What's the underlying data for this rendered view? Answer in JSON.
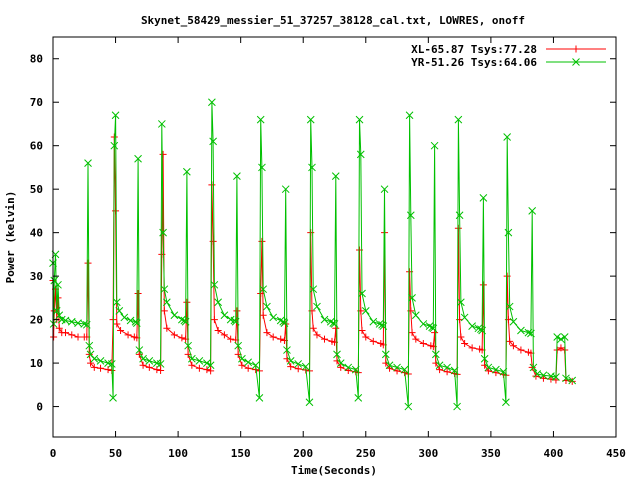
{
  "chart_data": {
    "type": "line",
    "title": "Skynet_58429_messier_51_37257_38128_cal.txt, LOWRES, onoff",
    "xlabel": "Time(Seconds)",
    "ylabel": "Power (kelvin)",
    "xlim": [
      0,
      450
    ],
    "ylim": [
      -7,
      85
    ],
    "xticks": [
      0,
      50,
      100,
      150,
      200,
      250,
      300,
      350,
      400,
      450
    ],
    "yticks": [
      0,
      10,
      20,
      30,
      40,
      50,
      60,
      70,
      80
    ],
    "legend_position": "top-right",
    "grid": false,
    "series": [
      {
        "name": "XL-65.87 Tsys:77.28",
        "color": "#ff0000",
        "marker": "plus",
        "points": [
          [
            0,
            29
          ],
          [
            0.5,
            16
          ],
          [
            1,
            22
          ],
          [
            2,
            27
          ],
          [
            3,
            20
          ],
          [
            4,
            25
          ],
          [
            5,
            18
          ],
          [
            7,
            17
          ],
          [
            10,
            17
          ],
          [
            15,
            16.5
          ],
          [
            20,
            16
          ],
          [
            25,
            16
          ],
          [
            27,
            16
          ],
          [
            28,
            33
          ],
          [
            29,
            12
          ],
          [
            30,
            10
          ],
          [
            33,
            9
          ],
          [
            38,
            8.8
          ],
          [
            44,
            8.5
          ],
          [
            47,
            8.3
          ],
          [
            48,
            20
          ],
          [
            49,
            62
          ],
          [
            50,
            45
          ],
          [
            51,
            19
          ],
          [
            54,
            17.5
          ],
          [
            60,
            16.5
          ],
          [
            65,
            16
          ],
          [
            67,
            15.8
          ],
          [
            68,
            26
          ],
          [
            69,
            12
          ],
          [
            72,
            9.5
          ],
          [
            77,
            9
          ],
          [
            83,
            8.5
          ],
          [
            86,
            8.3
          ],
          [
            87,
            35
          ],
          [
            88,
            58
          ],
          [
            89,
            22
          ],
          [
            91,
            18
          ],
          [
            97,
            16.5
          ],
          [
            103,
            15.8
          ],
          [
            106,
            15.5
          ],
          [
            107,
            24
          ],
          [
            108,
            12
          ],
          [
            111,
            9.5
          ],
          [
            117,
            8.8
          ],
          [
            123,
            8.5
          ],
          [
            126,
            8.2
          ],
          [
            127,
            51
          ],
          [
            128,
            38
          ],
          [
            129,
            20
          ],
          [
            132,
            17.5
          ],
          [
            137,
            16.5
          ],
          [
            142,
            15.5
          ],
          [
            146,
            15.3
          ],
          [
            147,
            22
          ],
          [
            148,
            12
          ],
          [
            151,
            9.5
          ],
          [
            156,
            8.8
          ],
          [
            162,
            8.5
          ],
          [
            165,
            8.2
          ],
          [
            166,
            26
          ],
          [
            167,
            38
          ],
          [
            168,
            21
          ],
          [
            171,
            17
          ],
          [
            176,
            16
          ],
          [
            182,
            15.5
          ],
          [
            185,
            15.2
          ],
          [
            186,
            19
          ],
          [
            187,
            11
          ],
          [
            190,
            9.2
          ],
          [
            196,
            8.7
          ],
          [
            202,
            8.4
          ],
          [
            205,
            8.2
          ],
          [
            206,
            40
          ],
          [
            207,
            22
          ],
          [
            208,
            18
          ],
          [
            211,
            16.5
          ],
          [
            217,
            15.5
          ],
          [
            223,
            15
          ],
          [
            225,
            14.8
          ],
          [
            226,
            18
          ],
          [
            227,
            10.5
          ],
          [
            230,
            9
          ],
          [
            236,
            8.3
          ],
          [
            242,
            8
          ],
          [
            244,
            7.8
          ],
          [
            245,
            36
          ],
          [
            246,
            22
          ],
          [
            247,
            17.5
          ],
          [
            250,
            16
          ],
          [
            256,
            15
          ],
          [
            262,
            14.5
          ],
          [
            264,
            14.2
          ],
          [
            265,
            40
          ],
          [
            266,
            10
          ],
          [
            269,
            8.8
          ],
          [
            275,
            8.2
          ],
          [
            281,
            7.8
          ],
          [
            284,
            7.5
          ],
          [
            285,
            31
          ],
          [
            286,
            22
          ],
          [
            287,
            17
          ],
          [
            290,
            15.5
          ],
          [
            296,
            14.5
          ],
          [
            302,
            14
          ],
          [
            304,
            13.8
          ],
          [
            305,
            17
          ],
          [
            306,
            10
          ],
          [
            309,
            8.5
          ],
          [
            315,
            8
          ],
          [
            321,
            7.6
          ],
          [
            323,
            7.4
          ],
          [
            324,
            41
          ],
          [
            325,
            20
          ],
          [
            326,
            16
          ],
          [
            329,
            14.5
          ],
          [
            335,
            13.5
          ],
          [
            341,
            13.2
          ],
          [
            343,
            13
          ],
          [
            344,
            28
          ],
          [
            345,
            9.5
          ],
          [
            348,
            8.2
          ],
          [
            354,
            7.8
          ],
          [
            360,
            7.4
          ],
          [
            362,
            7.2
          ],
          [
            363,
            30
          ],
          [
            364,
            20
          ],
          [
            365,
            15
          ],
          [
            368,
            14
          ],
          [
            374,
            13
          ],
          [
            380,
            12.5
          ],
          [
            382,
            12.3
          ],
          [
            383,
            9
          ],
          [
            386,
            7
          ],
          [
            392,
            6.5
          ],
          [
            398,
            6.3
          ],
          [
            402,
            6.1
          ],
          [
            403,
            13
          ],
          [
            406,
            13.5
          ],
          [
            409,
            13
          ],
          [
            410,
            6
          ],
          [
            415,
            5.8
          ]
        ]
      },
      {
        "name": "YR-51.26 Tsys:64.06",
        "color": "#00c000",
        "marker": "x",
        "points": [
          [
            0,
            33
          ],
          [
            0.5,
            19
          ],
          [
            1,
            29
          ],
          [
            2,
            35
          ],
          [
            3,
            22
          ],
          [
            4,
            28
          ],
          [
            5,
            21
          ],
          [
            7,
            20
          ],
          [
            10,
            19.8
          ],
          [
            15,
            19.5
          ],
          [
            20,
            19.2
          ],
          [
            25,
            19
          ],
          [
            27,
            18.8
          ],
          [
            28,
            56
          ],
          [
            29,
            14
          ],
          [
            30,
            12
          ],
          [
            33,
            11
          ],
          [
            38,
            10.5
          ],
          [
            44,
            10
          ],
          [
            47,
            9.8
          ],
          [
            48,
            2
          ],
          [
            49,
            60
          ],
          [
            50,
            67
          ],
          [
            51,
            24
          ],
          [
            53,
            22
          ],
          [
            57,
            20.5
          ],
          [
            62,
            19.8
          ],
          [
            66,
            19.5
          ],
          [
            67,
            19.2
          ],
          [
            68,
            57
          ],
          [
            69,
            13
          ],
          [
            72,
            11
          ],
          [
            77,
            10.5
          ],
          [
            83,
            10
          ],
          [
            86,
            9.8
          ],
          [
            87,
            65
          ],
          [
            88,
            40
          ],
          [
            89,
            27
          ],
          [
            91,
            24
          ],
          [
            97,
            21
          ],
          [
            103,
            20
          ],
          [
            105,
            19.8
          ],
          [
            106,
            19.5
          ],
          [
            107,
            54
          ],
          [
            108,
            14
          ],
          [
            111,
            11
          ],
          [
            117,
            10.5
          ],
          [
            123,
            10
          ],
          [
            126,
            9.5
          ],
          [
            127,
            70
          ],
          [
            128,
            61
          ],
          [
            129,
            28
          ],
          [
            132,
            24
          ],
          [
            137,
            21
          ],
          [
            142,
            20
          ],
          [
            145,
            19.8
          ],
          [
            146,
            19.5
          ],
          [
            147,
            53
          ],
          [
            148,
            14
          ],
          [
            151,
            11
          ],
          [
            156,
            10.2
          ],
          [
            162,
            9.5
          ],
          [
            165,
            2
          ],
          [
            166,
            66
          ],
          [
            167,
            55
          ],
          [
            168,
            27
          ],
          [
            171,
            23
          ],
          [
            176,
            20.5
          ],
          [
            182,
            19.8
          ],
          [
            184,
            19.5
          ],
          [
            185,
            19.2
          ],
          [
            186,
            50
          ],
          [
            187,
            13
          ],
          [
            190,
            10.5
          ],
          [
            196,
            9.8
          ],
          [
            202,
            9.2
          ],
          [
            205,
            1
          ],
          [
            206,
            66
          ],
          [
            207,
            55
          ],
          [
            208,
            27
          ],
          [
            211,
            23
          ],
          [
            217,
            20
          ],
          [
            222,
            19.5
          ],
          [
            224,
            19.2
          ],
          [
            225,
            19
          ],
          [
            226,
            53
          ],
          [
            227,
            12
          ],
          [
            230,
            10
          ],
          [
            236,
            9
          ],
          [
            242,
            8.5
          ],
          [
            244,
            2
          ],
          [
            245,
            66
          ],
          [
            246,
            58
          ],
          [
            247,
            26
          ],
          [
            250,
            22
          ],
          [
            256,
            19.5
          ],
          [
            261,
            19
          ],
          [
            263,
            18.8
          ],
          [
            264,
            18.5
          ],
          [
            265,
            50
          ],
          [
            266,
            12
          ],
          [
            269,
            9.5
          ],
          [
            275,
            9
          ],
          [
            281,
            8.5
          ],
          [
            284,
            0
          ],
          [
            285,
            67
          ],
          [
            286,
            44
          ],
          [
            287,
            25
          ],
          [
            290,
            21
          ],
          [
            296,
            19
          ],
          [
            301,
            18.5
          ],
          [
            303,
            18.2
          ],
          [
            304,
            18
          ],
          [
            305,
            60
          ],
          [
            306,
            12
          ],
          [
            309,
            9.5
          ],
          [
            315,
            9
          ],
          [
            321,
            8.3
          ],
          [
            323,
            0
          ],
          [
            324,
            66
          ],
          [
            325,
            44
          ],
          [
            326,
            24
          ],
          [
            329,
            20.5
          ],
          [
            335,
            18.5
          ],
          [
            340,
            18
          ],
          [
            342,
            17.8
          ],
          [
            343,
            17.5
          ],
          [
            344,
            48
          ],
          [
            345,
            11
          ],
          [
            348,
            9
          ],
          [
            354,
            8.5
          ],
          [
            360,
            8
          ],
          [
            362,
            1
          ],
          [
            363,
            62
          ],
          [
            364,
            40
          ],
          [
            365,
            23
          ],
          [
            368,
            19.5
          ],
          [
            374,
            17.5
          ],
          [
            380,
            17
          ],
          [
            382,
            16.8
          ],
          [
            383,
            45
          ],
          [
            384,
            9
          ],
          [
            387,
            7.5
          ],
          [
            392,
            7.2
          ],
          [
            398,
            7
          ],
          [
            402,
            6.8
          ],
          [
            403,
            16
          ],
          [
            406,
            15.5
          ],
          [
            409,
            16
          ],
          [
            410,
            6.5
          ],
          [
            415,
            6
          ]
        ]
      }
    ]
  }
}
